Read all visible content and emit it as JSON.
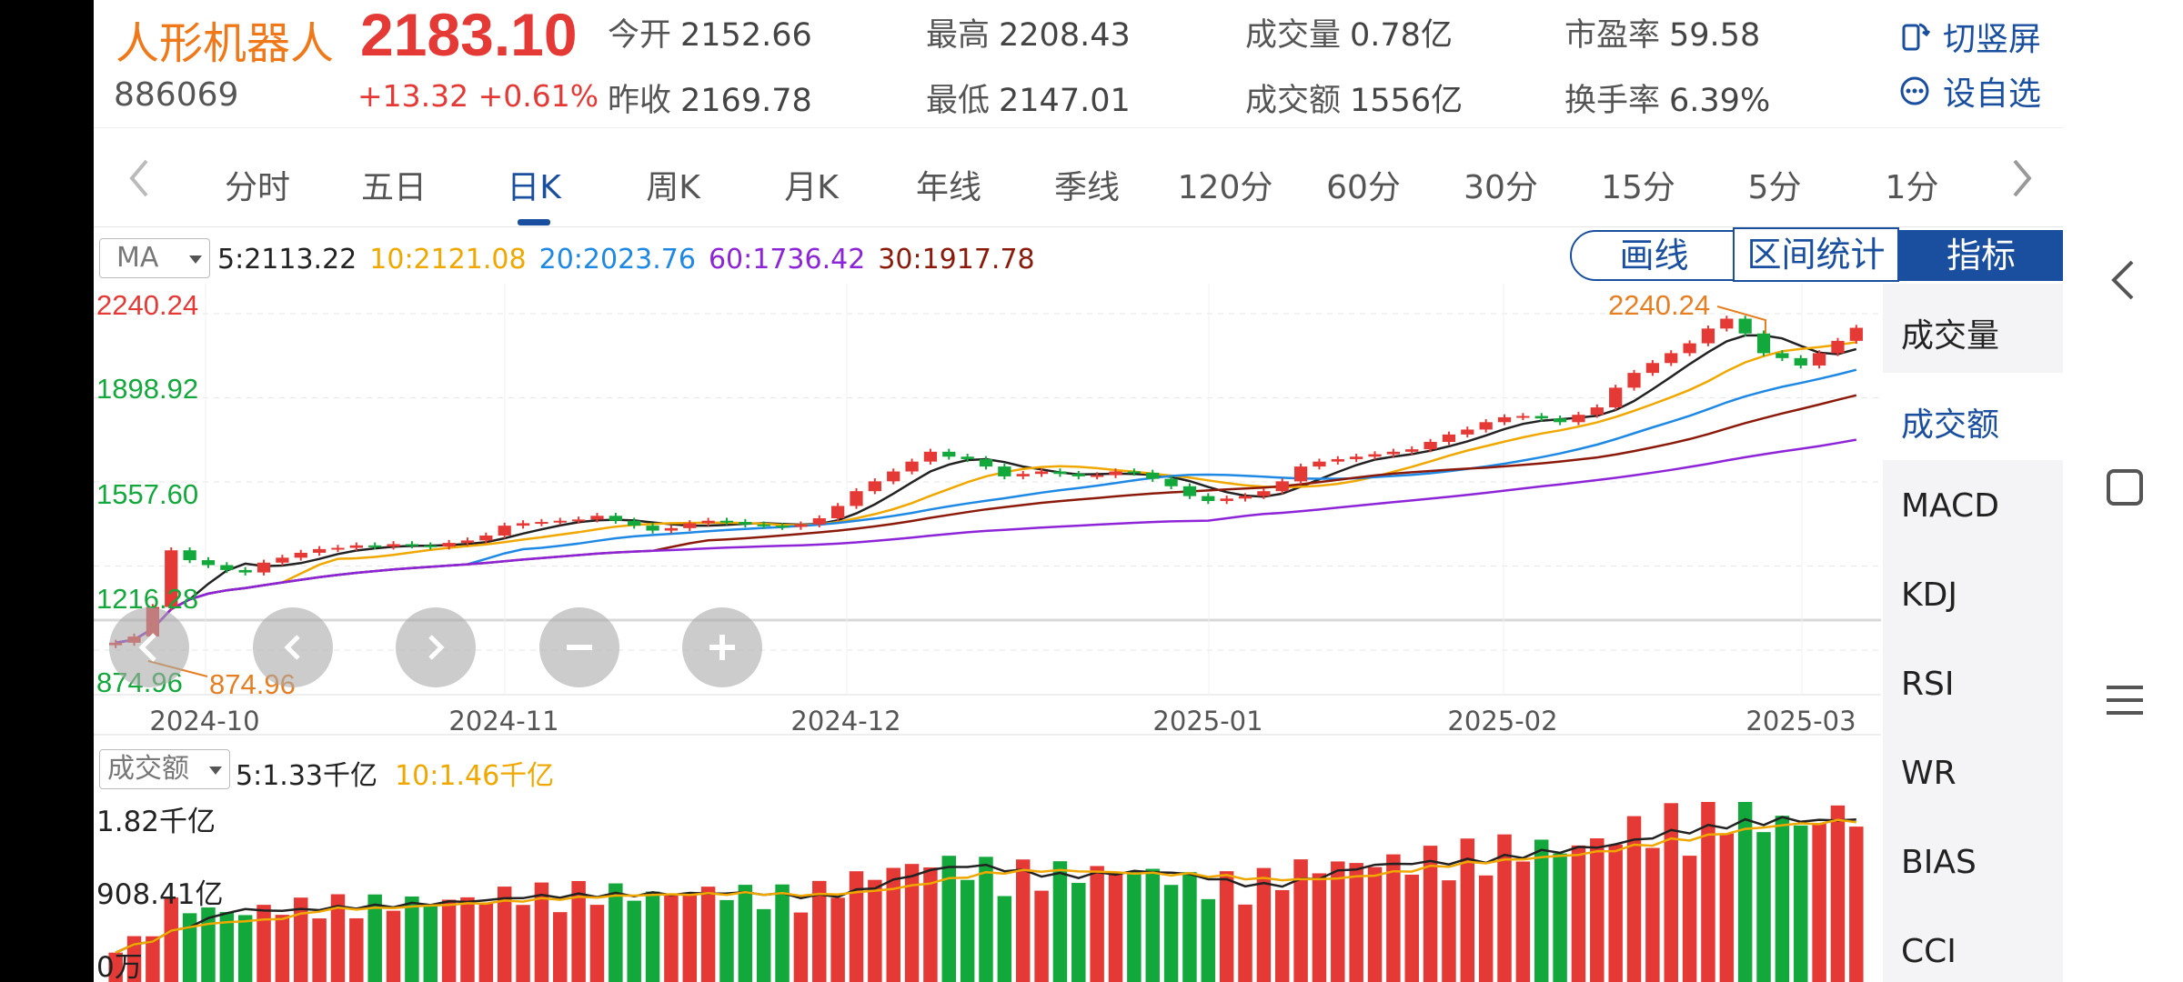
{
  "header": {
    "name": "人形机器人",
    "code": "886069",
    "price": "2183.10",
    "change": "+13.32",
    "change_pct": "+0.61%",
    "stats": [
      {
        "label": "今开",
        "value": "2152.66"
      },
      {
        "label": "昨收",
        "value": "2169.78"
      },
      {
        "label": "最高",
        "value": "2208.43"
      },
      {
        "label": "最低",
        "value": "2147.01"
      },
      {
        "label": "成交量",
        "value": "0.78亿"
      },
      {
        "label": "成交额",
        "value": "1556亿"
      },
      {
        "label": "市盈率",
        "value": "59.58"
      },
      {
        "label": "换手率",
        "value": "6.39%"
      }
    ],
    "actions": [
      {
        "label": "切竖屏",
        "icon": "rotate-phone-icon"
      },
      {
        "label": "设自选",
        "icon": "add-watchlist-icon"
      }
    ]
  },
  "tabs": [
    "分时",
    "五日",
    "日K",
    "周K",
    "月K",
    "年线",
    "季线",
    "120分",
    "60分",
    "30分",
    "15分",
    "5分",
    "1分"
  ],
  "active_tab": "日K",
  "toolbar": {
    "ma_select": "MA",
    "ma_values": [
      {
        "label": "5:2113.22",
        "color": "#222222"
      },
      {
        "label": "10:2121.08",
        "color": "#f0a800"
      },
      {
        "label": "20:2023.76",
        "color": "#1e88e5"
      },
      {
        "label": "60:1736.42",
        "color": "#8e24d8"
      },
      {
        "label": "30:1917.78",
        "color": "#8b1a0a"
      }
    ],
    "draw_label": "画线",
    "range_label": "区间统计",
    "indicator_label": "指标"
  },
  "indicators": [
    "成交量",
    "成交额",
    "MACD",
    "KDJ",
    "RSI",
    "WR",
    "BIAS",
    "CCI"
  ],
  "selected_indicator": "成交额",
  "price_axis": {
    "max": "2240.24",
    "l2": "1898.92",
    "l3": "1557.60",
    "l4": "1216.28",
    "min": "874.96",
    "high_marker": "2240.24",
    "low_marker": "874.96"
  },
  "dates": [
    "2024-10",
    "2024-11",
    "2024-12",
    "2025-01",
    "2025-02",
    "2025-03"
  ],
  "volume": {
    "select": "成交额",
    "ma5": "5:1.33千亿",
    "ma10": "10:1.46千亿",
    "max_label": "1.82千亿",
    "mid_label": "908.41亿",
    "zero_label": "0万"
  },
  "zoom_buttons": [
    "back",
    "left",
    "right",
    "minus",
    "plus"
  ],
  "colors": {
    "up": "#e53935",
    "down": "#13a83b",
    "accent": "#1a4fa0",
    "ma5": "#222222",
    "ma10": "#f0a800",
    "ma20": "#1e88e5",
    "ma30": "#8b1a0a",
    "ma60": "#8e24d8"
  },
  "chart_data": {
    "type": "candlestick",
    "y_range": [
      874.96,
      2240.24
    ],
    "candles_close": [
      905,
      930,
      1050,
      1280,
      1240,
      1220,
      1200,
      1190,
      1230,
      1250,
      1270,
      1285,
      1290,
      1300,
      1295,
      1305,
      1300,
      1295,
      1310,
      1320,
      1340,
      1380,
      1390,
      1395,
      1400,
      1405,
      1420,
      1400,
      1380,
      1360,
      1370,
      1390,
      1400,
      1395,
      1385,
      1380,
      1375,
      1385,
      1410,
      1460,
      1520,
      1560,
      1600,
      1640,
      1680,
      1660,
      1650,
      1620,
      1580,
      1590,
      1600,
      1590,
      1580,
      1585,
      1600,
      1595,
      1570,
      1540,
      1500,
      1480,
      1490,
      1500,
      1520,
      1560,
      1620,
      1640,
      1650,
      1660,
      1670,
      1680,
      1690,
      1720,
      1750,
      1770,
      1800,
      1820,
      1825,
      1815,
      1800,
      1830,
      1860,
      1940,
      2000,
      2040,
      2080,
      2120,
      2180,
      2220,
      2160,
      2080,
      2060,
      2030,
      2080,
      2130,
      2183
    ]
  }
}
